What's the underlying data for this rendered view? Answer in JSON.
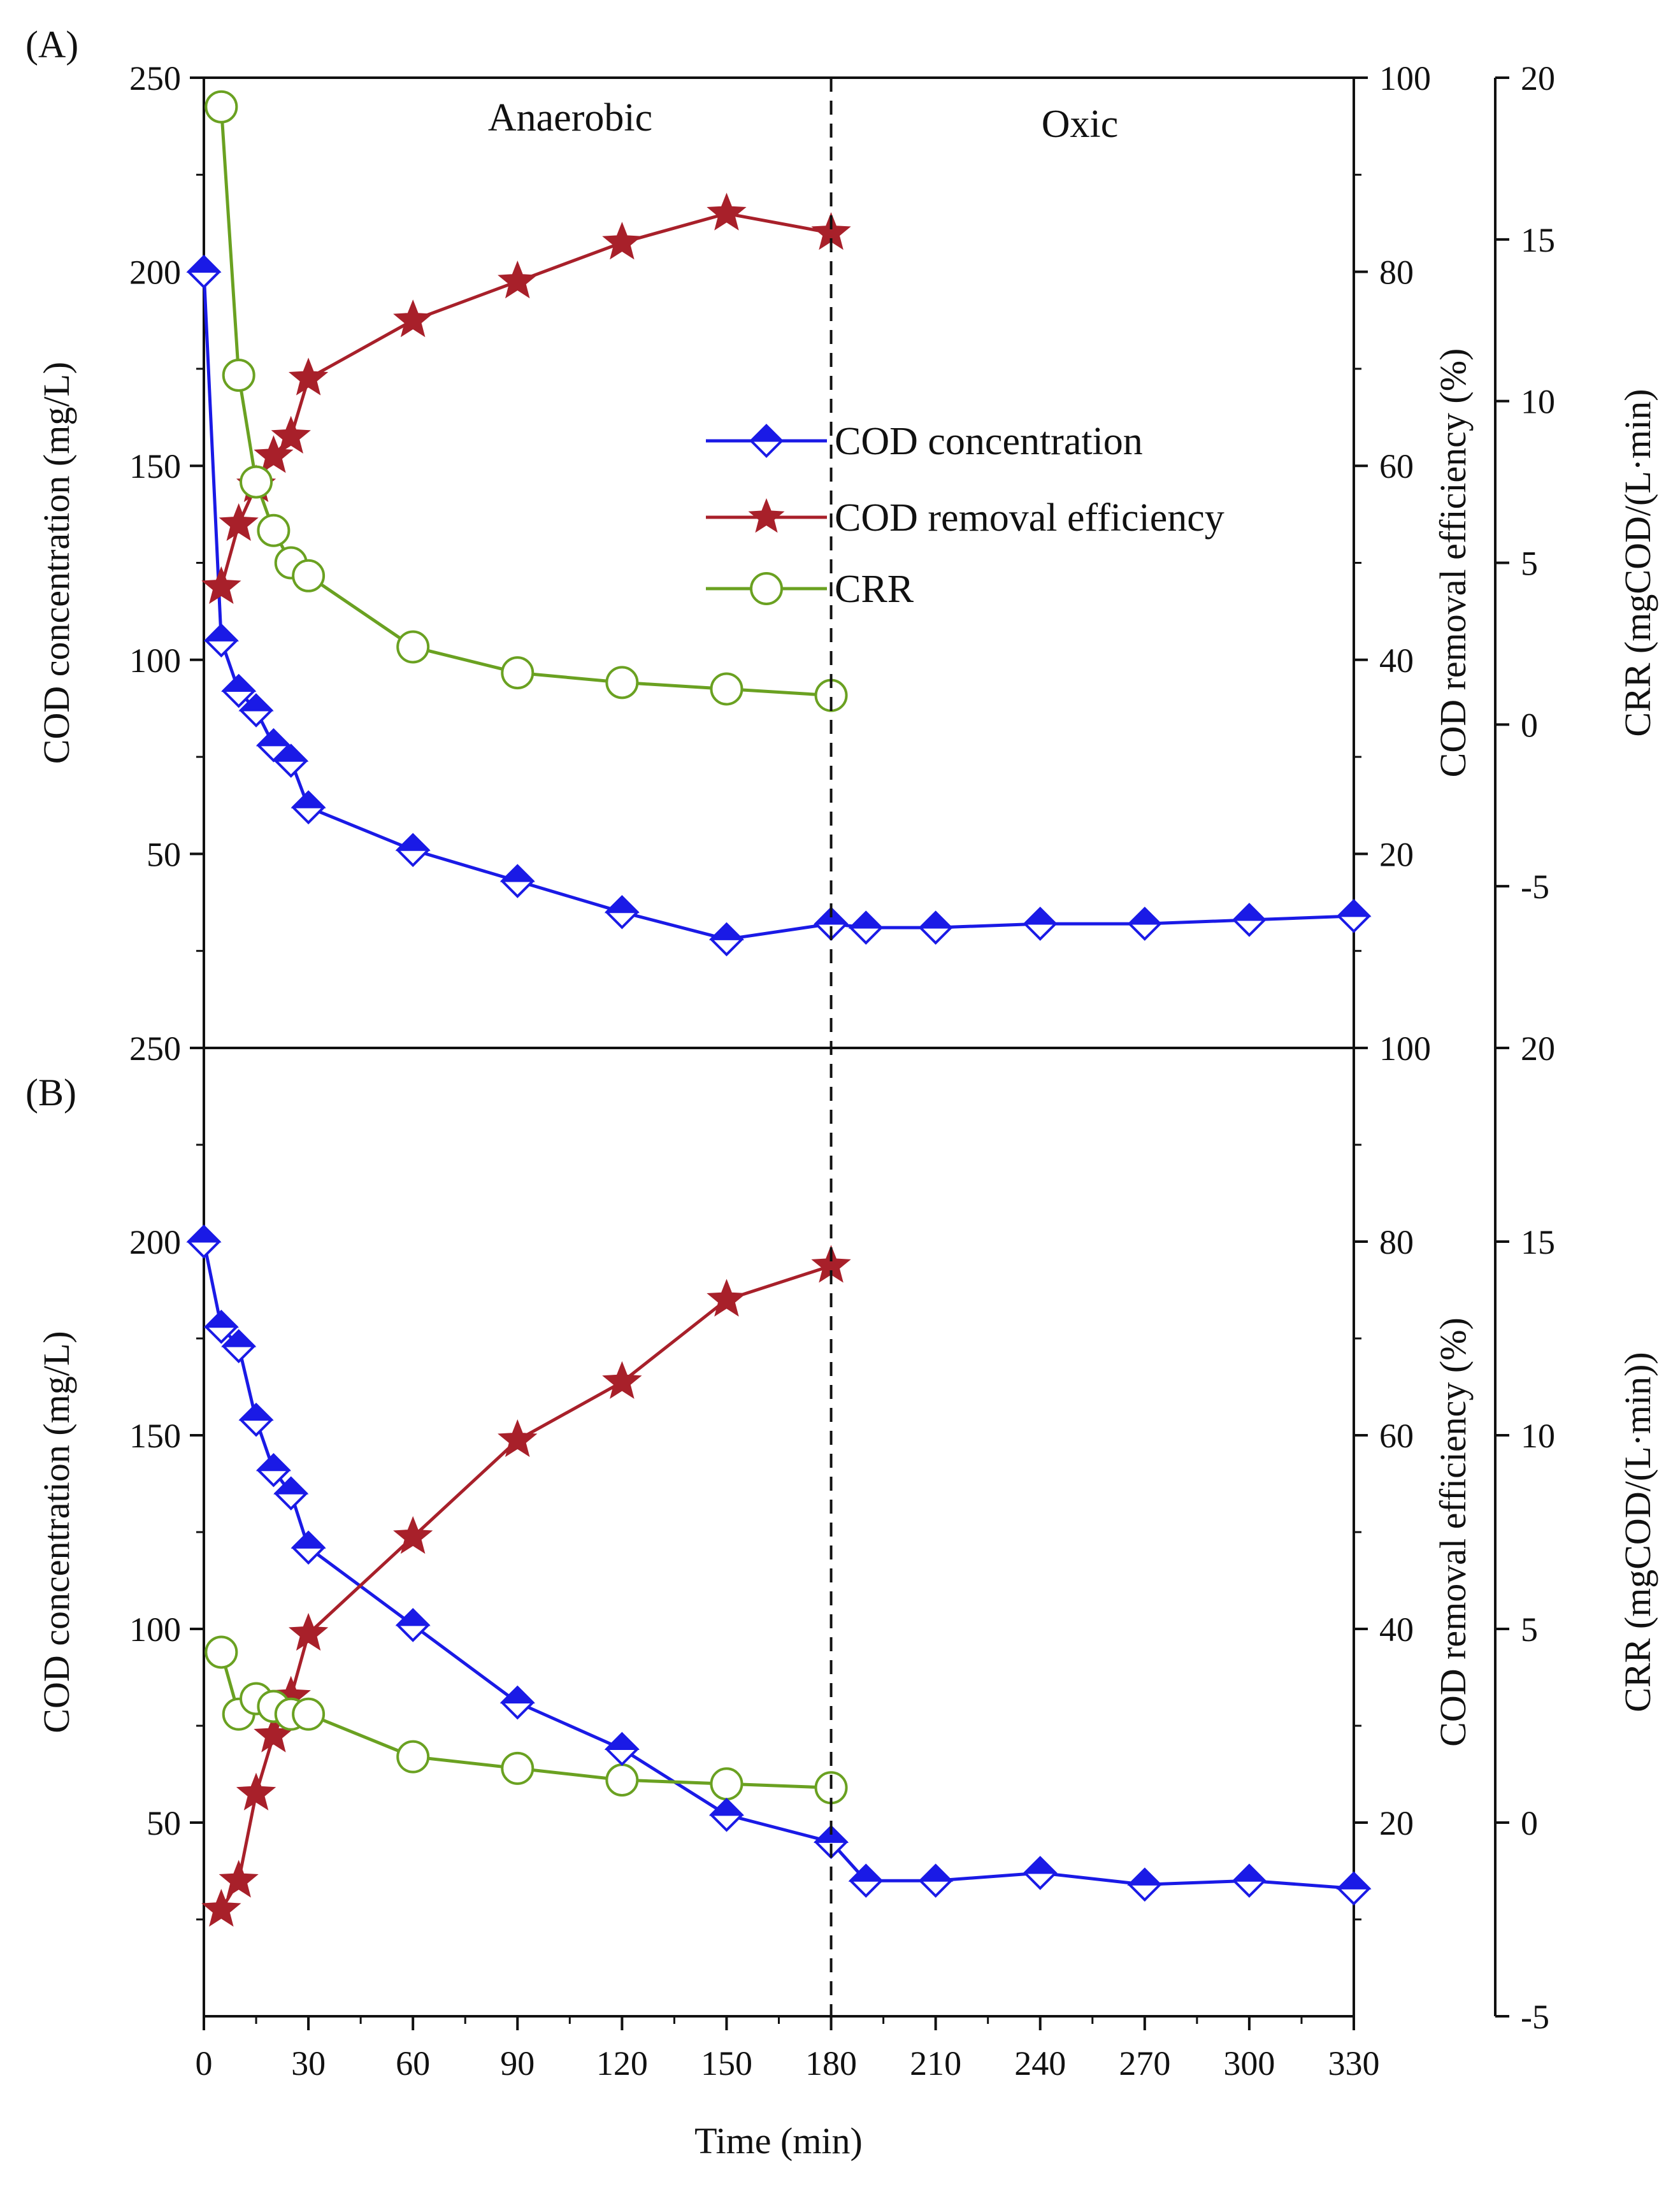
{
  "chart_data": {
    "type": "line",
    "colors": {
      "cod": "#1a1ae6",
      "removal": "#a8202a",
      "crr": "#6aa121",
      "axis": "#111111",
      "divider": "#111111"
    },
    "x_axis": {
      "label": "Time (min)",
      "range": [
        0,
        330
      ],
      "ticks": [
        0,
        30,
        60,
        90,
        120,
        150,
        180,
        210,
        240,
        270,
        300,
        330
      ],
      "tick_labels": [
        "0",
        "30",
        "60",
        "90",
        "120",
        "150",
        "180",
        "210",
        "240",
        "270",
        "300",
        "330"
      ]
    },
    "divider_x": 180,
    "regions": {
      "left": "Anaerobic",
      "right": "Oxic"
    },
    "legend": [
      {
        "key": "cod",
        "label": "COD concentration"
      },
      {
        "key": "removal",
        "label": "COD removal efficiency"
      },
      {
        "key": "crr",
        "label": "CRR"
      }
    ],
    "panels": [
      {
        "label": "(A)",
        "y_left": {
          "label": "COD  concentration (mg/L)",
          "range": [
            0,
            250
          ],
          "ticks": [
            50,
            100,
            150,
            200,
            250
          ],
          "tick_labels": [
            "50",
            "100",
            "150",
            "200",
            "250"
          ]
        },
        "y_mid": {
          "label": "COD removal efficiency (%)",
          "range": [
            0,
            100
          ],
          "ticks": [
            20,
            40,
            60,
            80,
            100
          ],
          "tick_labels": [
            "20",
            "40",
            "60",
            "80",
            "100"
          ]
        },
        "y_right": {
          "label": "CRR (mgCOD/(L·min)",
          "range": [
            -10,
            20
          ],
          "ticks": [
            -5,
            0,
            5,
            10,
            15,
            20
          ],
          "tick_labels": [
            "-5",
            "0",
            "5",
            "10",
            "15",
            "20"
          ]
        },
        "series": {
          "cod": {
            "x": [
              0,
              5,
              10,
              15,
              20,
              25,
              30,
              60,
              90,
              120,
              150,
              180,
              190,
              210,
              240,
              270,
              300,
              330
            ],
            "y": [
              200,
              105,
              92,
              87,
              78,
              74,
              62,
              51,
              43,
              35,
              28,
              32,
              31,
              31,
              32,
              32,
              33,
              34
            ]
          },
          "removal": {
            "x": [
              5,
              10,
              15,
              20,
              25,
              30,
              60,
              90,
              120,
              150,
              180
            ],
            "y": [
              47.5,
              54,
              58,
              61,
              63,
              69,
              75,
              79,
              83,
              86,
              84
            ]
          },
          "crr": {
            "x": [
              5,
              10,
              15,
              20,
              25,
              30,
              60,
              90,
              120,
              150,
              180
            ],
            "y": [
              19.1,
              10.8,
              7.5,
              6,
              5,
              4.6,
              2.4,
              1.6,
              1.3,
              1.1,
              0.9
            ]
          }
        }
      },
      {
        "label": "(B)",
        "y_left": {
          "label": "COD concentration (mg/L)",
          "range": [
            0,
            250
          ],
          "ticks": [
            50,
            100,
            150,
            200,
            250
          ],
          "tick_labels": [
            "50",
            "100",
            "150",
            "200",
            "250"
          ]
        },
        "y_mid": {
          "label": "COD  removal efficiency (%)",
          "range": [
            0,
            100
          ],
          "ticks": [
            20,
            40,
            60,
            80,
            100
          ],
          "tick_labels": [
            "20",
            "40",
            "60",
            "80",
            "100"
          ]
        },
        "y_right": {
          "label": "CRR (mgCOD/(L·min))",
          "range": [
            -5,
            20
          ],
          "ticks": [
            -5,
            0,
            5,
            10,
            15,
            20
          ],
          "tick_labels": [
            "-5",
            "0",
            "5",
            "10",
            "15",
            "20"
          ]
        },
        "series": {
          "cod": {
            "x": [
              0,
              5,
              10,
              15,
              20,
              25,
              30,
              60,
              90,
              120,
              150,
              180,
              190,
              210,
              240,
              270,
              300,
              330
            ],
            "y": [
              200,
              178,
              173,
              154,
              141,
              135,
              121,
              101,
              81,
              69,
              52,
              45,
              35,
              35,
              37,
              34,
              35,
              33
            ]
          },
          "removal": {
            "x": [
              5,
              10,
              15,
              20,
              25,
              30,
              60,
              90,
              120,
              150,
              180
            ],
            "y": [
              11,
              14,
              23,
              29,
              33,
              39.5,
              49.5,
              59.5,
              65.5,
              74,
              77.5
            ]
          },
          "crr": {
            "x": [
              5,
              10,
              15,
              20,
              25,
              30,
              60,
              90,
              120,
              150,
              180
            ],
            "y": [
              4.4,
              2.8,
              3.2,
              3.0,
              2.8,
              2.8,
              1.7,
              1.4,
              1.1,
              1.0,
              0.9
            ]
          }
        }
      }
    ]
  }
}
